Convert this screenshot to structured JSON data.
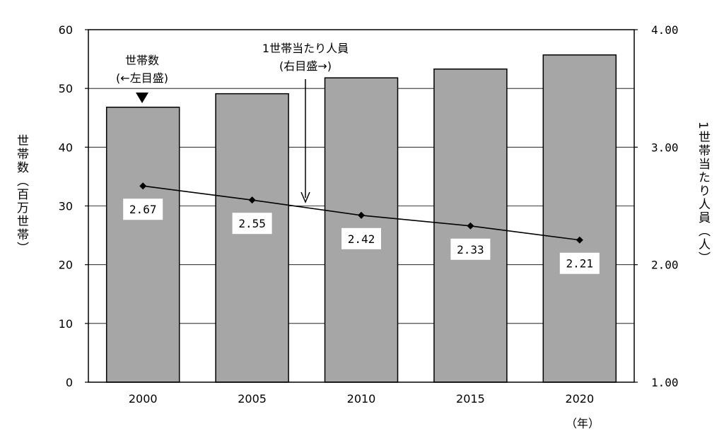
{
  "chart_data": {
    "type": "bar",
    "categories": [
      "2000",
      "2005",
      "2010",
      "2015",
      "2020"
    ],
    "series": [
      {
        "name": "世帯数",
        "type": "bar",
        "axis": "left",
        "values": [
          46.8,
          49.1,
          51.8,
          53.3,
          55.7
        ],
        "color": "#a6a6a6"
      },
      {
        "name": "1世帯当たり人員",
        "type": "line",
        "axis": "right",
        "values": [
          2.67,
          2.55,
          2.42,
          2.33,
          2.21
        ],
        "labels": [
          "2.67",
          "2.55",
          "2.42",
          "2.33",
          "2.21"
        ],
        "color": "#000000"
      }
    ],
    "ylabel": "世帯数（百万世帯）",
    "ylim": [
      0,
      60
    ],
    "yticks": [
      "0",
      "10",
      "20",
      "30",
      "40",
      "50",
      "60"
    ],
    "y2label": "1世帯当たり人員（人）",
    "y2lim": [
      1.0,
      4.0
    ],
    "y2ticks": [
      "1.00",
      "2.00",
      "3.00",
      "4.00"
    ],
    "xunit": "（年）",
    "grid": true,
    "annotations": {
      "bars_line1": "世帯数",
      "bars_line2": "(←左目盛)",
      "line_line1": "1世帯当たり人員",
      "line_line2": "(右目盛→)"
    }
  }
}
